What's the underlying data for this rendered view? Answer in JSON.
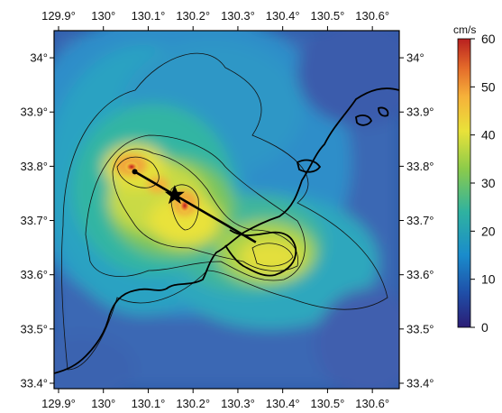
{
  "map": {
    "title": "",
    "lon_ticks": [
      "129.9°",
      "130°",
      "130.1°",
      "130.2°",
      "130.3°",
      "130.4°",
      "130.5°",
      "130.6°"
    ],
    "lat_ticks": [
      "34°",
      "33.9°",
      "33.8°",
      "33.7°",
      "33.6°",
      "33.5°",
      "33.4°"
    ],
    "lon_tick_values": [
      129.9,
      130.0,
      130.1,
      130.2,
      130.3,
      130.4,
      130.5,
      130.6
    ],
    "lat_tick_values": [
      34.0,
      33.9,
      33.8,
      33.7,
      33.6,
      33.5,
      33.4
    ],
    "lon_range": [
      129.89,
      130.66
    ],
    "lat_range": [
      33.39,
      34.05
    ],
    "epicenter_marker": "star-icon",
    "fault_line": {
      "start": {
        "lon": 130.07,
        "lat": 33.79
      },
      "end": {
        "lon": 130.34,
        "lat": 33.66
      }
    }
  },
  "colorbar": {
    "unit": "cm/s",
    "labels": [
      "60",
      "50",
      "40",
      "30",
      "20",
      "10",
      "0"
    ],
    "values": [
      60,
      50,
      40,
      30,
      20,
      10,
      0
    ],
    "range": [
      0,
      60
    ],
    "colors": [
      "#2b1d75",
      "#1f4fa8",
      "#1a8ccc",
      "#2fb2a0",
      "#8ccb4a",
      "#e9e23a",
      "#f6b13a",
      "#e46a2a",
      "#b8201f"
    ]
  }
}
